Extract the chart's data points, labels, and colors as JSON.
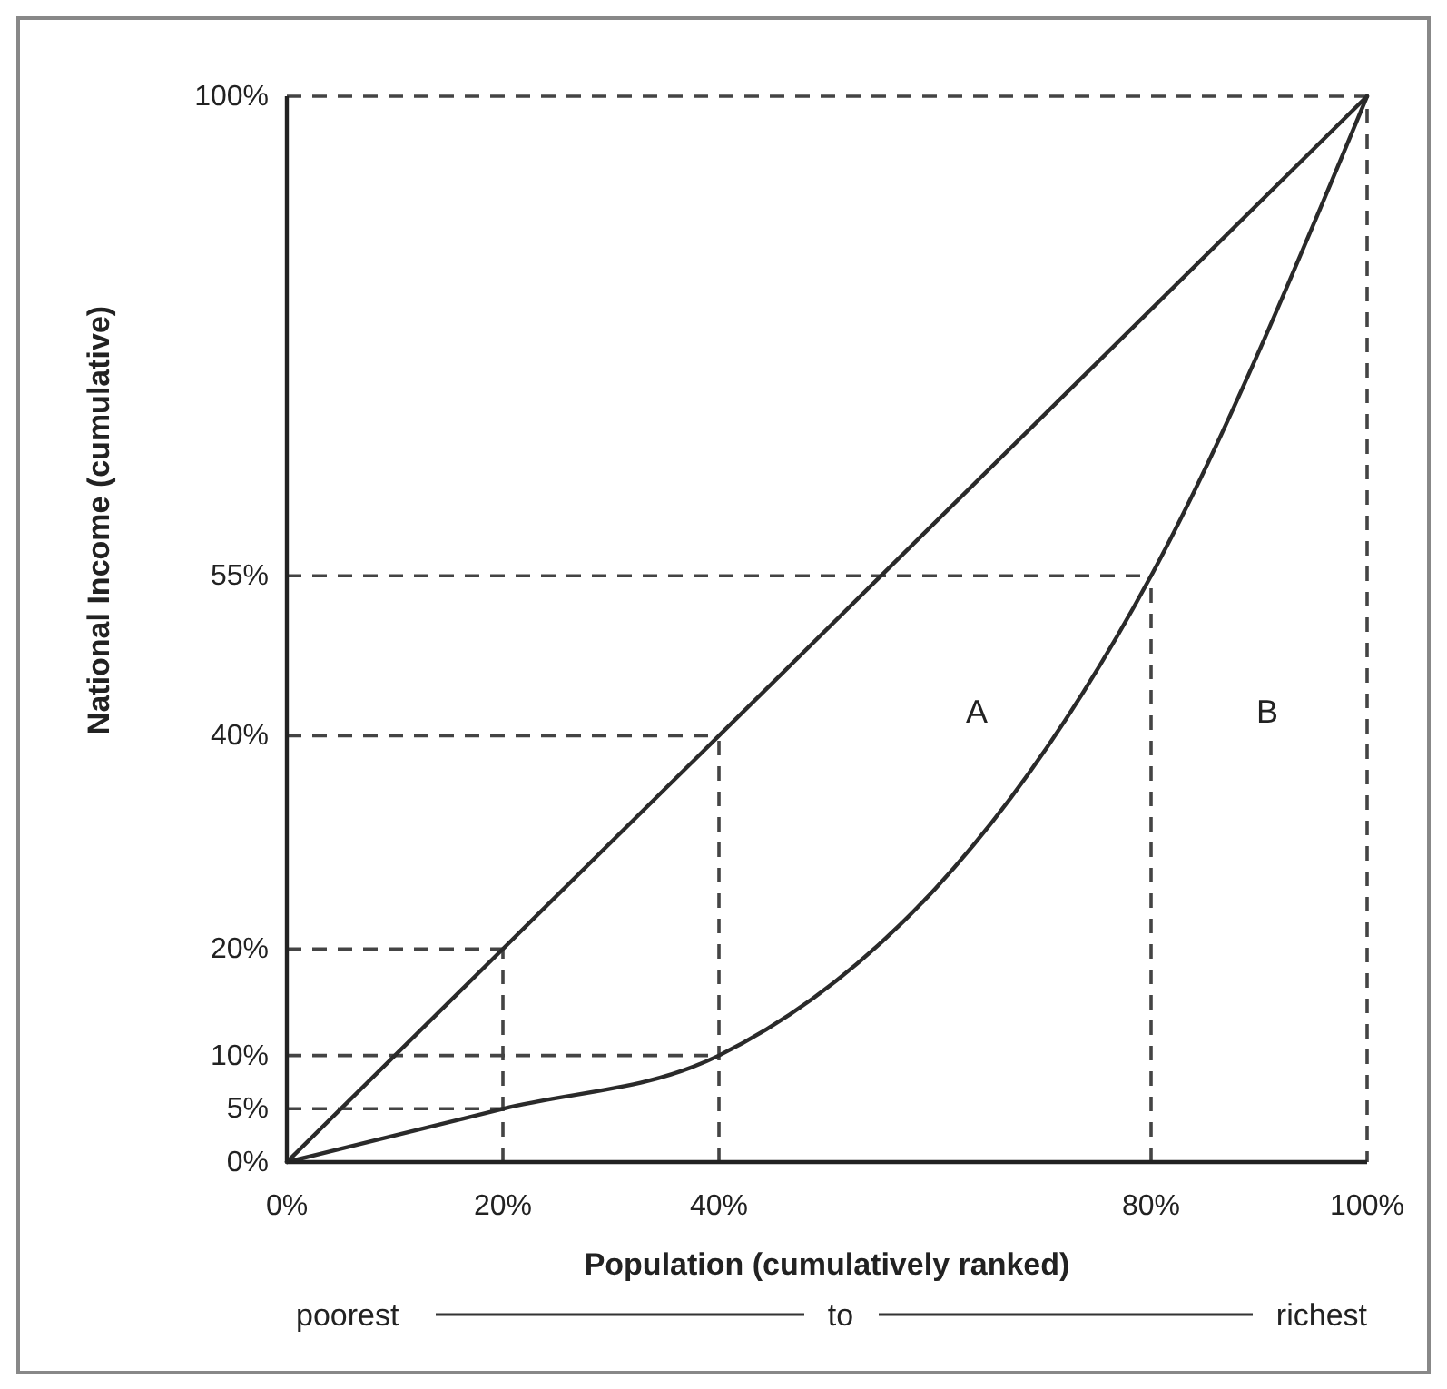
{
  "chart_data": {
    "type": "line",
    "xlabel": "Population (cumulatively ranked)",
    "ylabel": "National Income (cumulative)",
    "xlim": [
      0,
      100
    ],
    "ylim": [
      0,
      100
    ],
    "xticks": [
      {
        "value": 0,
        "label": "0%"
      },
      {
        "value": 20,
        "label": "20%"
      },
      {
        "value": 40,
        "label": "40%"
      },
      {
        "value": 80,
        "label": "80%"
      },
      {
        "value": 100,
        "label": "100%"
      }
    ],
    "yticks": [
      {
        "value": 0,
        "label": "0%"
      },
      {
        "value": 5,
        "label": "5%"
      },
      {
        "value": 10,
        "label": "10%"
      },
      {
        "value": 20,
        "label": "20%"
      },
      {
        "value": 40,
        "label": "40%"
      },
      {
        "value": 55,
        "label": "55%"
      },
      {
        "value": 100,
        "label": "100%"
      }
    ],
    "grid": false,
    "marker": "none",
    "series": [
      {
        "color": "#2a2a2a",
        "x": [
          0,
          20,
          40,
          100
        ],
        "values": [
          0,
          20,
          40,
          100
        ]
      },
      {
        "color": "#2a2a2a",
        "x": [
          0,
          20,
          40,
          80,
          100
        ],
        "values": [
          0,
          5,
          10,
          55,
          100
        ]
      }
    ],
    "ref_lines": [
      {
        "axis": "y",
        "value": 5,
        "color": "#444444",
        "line_style": "dashed"
      },
      {
        "axis": "y",
        "value": 10,
        "color": "#444444",
        "line_style": "dashed"
      },
      {
        "axis": "y",
        "value": 20,
        "color": "#444444",
        "line_style": "dashed"
      },
      {
        "axis": "y",
        "value": 40,
        "color": "#444444",
        "line_style": "dashed"
      },
      {
        "axis": "y",
        "value": 55,
        "color": "#444444",
        "line_style": "dashed"
      },
      {
        "axis": "x",
        "value": 20,
        "color": "#444444",
        "line_style": "dashed"
      },
      {
        "axis": "x",
        "value": 40,
        "color": "#444444",
        "line_style": "dashed"
      },
      {
        "axis": "x",
        "value": 80,
        "color": "#444444",
        "line_style": "dashed"
      }
    ],
    "annotations": [
      "A",
      "B",
      "poorest",
      "to",
      "richest"
    ]
  }
}
